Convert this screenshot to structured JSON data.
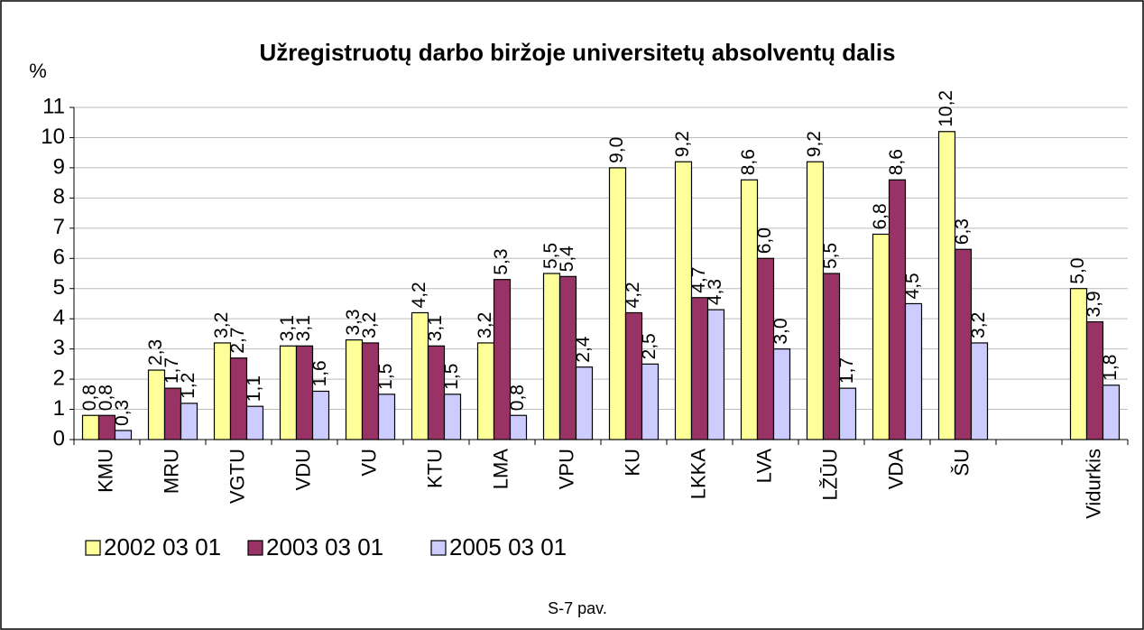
{
  "chart_data": {
    "type": "bar",
    "title": "Užregistruotų darbo biržoje universitetų absolventų dalis",
    "y_label": "%",
    "caption": "S-7 pav.",
    "categories": [
      "KMU",
      "MRU",
      "VGTU",
      "VDU",
      "VU",
      "KTU",
      "LMA",
      "VPU",
      "KU",
      "LKKA",
      "LVA",
      "LŽŪU",
      "VDA",
      "ŠU",
      null,
      "Vidurkis"
    ],
    "series": [
      {
        "name": "2002 03 01",
        "color": "#ffff99",
        "values": [
          0.8,
          2.3,
          3.2,
          3.1,
          3.3,
          4.2,
          3.2,
          5.5,
          9.0,
          9.2,
          8.6,
          9.2,
          6.8,
          10.2,
          null,
          5.0
        ],
        "value_labels": [
          "0,8",
          "2,3",
          "3,2",
          "3,1",
          "3,3",
          "4,2",
          "3,2",
          "5,5",
          "9,0",
          "9,2",
          "8,6",
          "9,2",
          "6,8",
          "10,2",
          null,
          "5,0"
        ]
      },
      {
        "name": "2003 03 01",
        "color": "#993366",
        "values": [
          0.8,
          1.7,
          2.7,
          3.1,
          3.2,
          3.1,
          5.3,
          5.4,
          4.2,
          4.7,
          6.0,
          5.5,
          8.6,
          6.3,
          null,
          3.9
        ],
        "value_labels": [
          "0,8",
          "1,7",
          "2,7",
          "3,1",
          "3,2",
          "3,1",
          "5,3",
          "5,4",
          "4,2",
          "4,7",
          "6,0",
          "5,5",
          "8,6",
          "6,3",
          null,
          "3,9"
        ]
      },
      {
        "name": "2005 03 01",
        "color": "#ccccff",
        "values": [
          0.3,
          1.2,
          1.1,
          1.6,
          1.5,
          1.5,
          0.8,
          2.4,
          2.5,
          4.3,
          3.0,
          1.7,
          4.5,
          3.2,
          null,
          1.8
        ],
        "value_labels": [
          "0,3",
          "1,2",
          "1,1",
          "1,6",
          "1,5",
          "1,5",
          "0,8",
          "2,4",
          "2,5",
          "4,3",
          "3,0",
          "1,7",
          "4,5",
          "3,2",
          null,
          "1,8"
        ]
      }
    ],
    "ylim": [
      0,
      11
    ],
    "yticks": [
      0,
      1,
      2,
      3,
      4,
      5,
      6,
      7,
      8,
      9,
      10,
      11
    ],
    "grid": true
  }
}
